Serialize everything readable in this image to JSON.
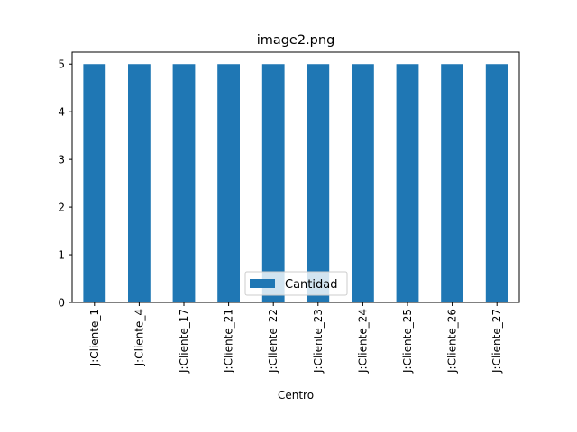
{
  "chart_data": {
    "type": "bar",
    "title": "image2.png",
    "xlabel": "Centro",
    "ylabel": "",
    "categories": [
      "J:Cliente_1",
      "J:Cliente_4",
      "J:Cliente_17",
      "J:Cliente_21",
      "J:Cliente_22",
      "J:Cliente_23",
      "J:Cliente_24",
      "J:Cliente_25",
      "J:Cliente_26",
      "J:Cliente_27"
    ],
    "series": [
      {
        "name": "Cantidad",
        "values": [
          5,
          5,
          5,
          5,
          5,
          5,
          5,
          5,
          5,
          5
        ]
      }
    ],
    "ylim": [
      0,
      5.25
    ],
    "yticks": [
      0,
      1,
      2,
      3,
      4,
      5
    ],
    "legend": "lower-center",
    "grid": false,
    "colors": {
      "bar": "#1f77b4"
    }
  }
}
